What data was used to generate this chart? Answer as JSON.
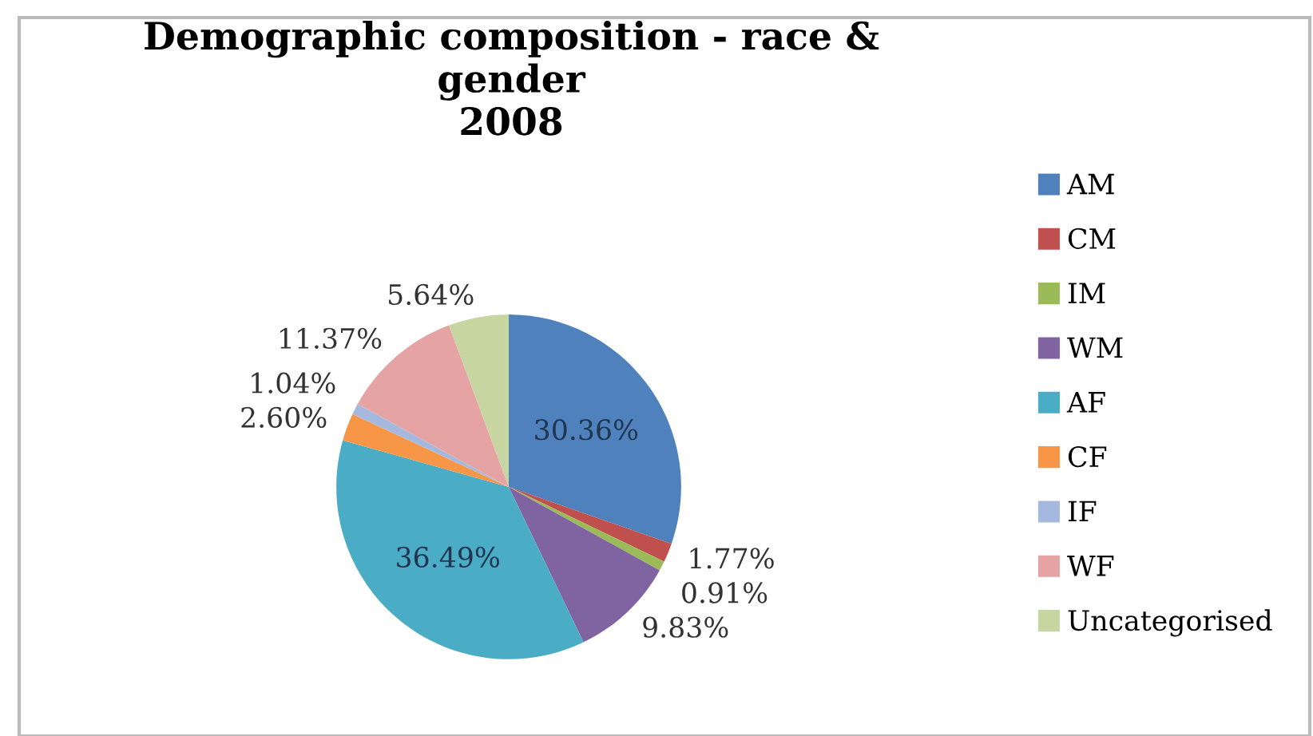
{
  "chart_data": {
    "type": "pie",
    "title": "Demographic composition - race &\ngender\n2008",
    "categories": [
      "AM",
      "CM",
      "IM",
      "WM",
      "AF",
      "CF",
      "IF",
      "WF",
      "Uncategorised"
    ],
    "values": [
      30.36,
      1.77,
      0.91,
      9.83,
      36.49,
      2.6,
      1.04,
      11.37,
      5.64
    ],
    "colors": [
      "#4f81bd",
      "#c0504d",
      "#9bbb59",
      "#8064a2",
      "#4bacc6",
      "#f79646",
      "#a5b8de",
      "#e6a3a3",
      "#c7d6a0"
    ],
    "value_labels": [
      "30.36%",
      "1.77%",
      "0.91%",
      "9.83%",
      "36.49%",
      "2.60%",
      "1.04%",
      "11.37%",
      "5.64%"
    ],
    "legend": "right"
  }
}
